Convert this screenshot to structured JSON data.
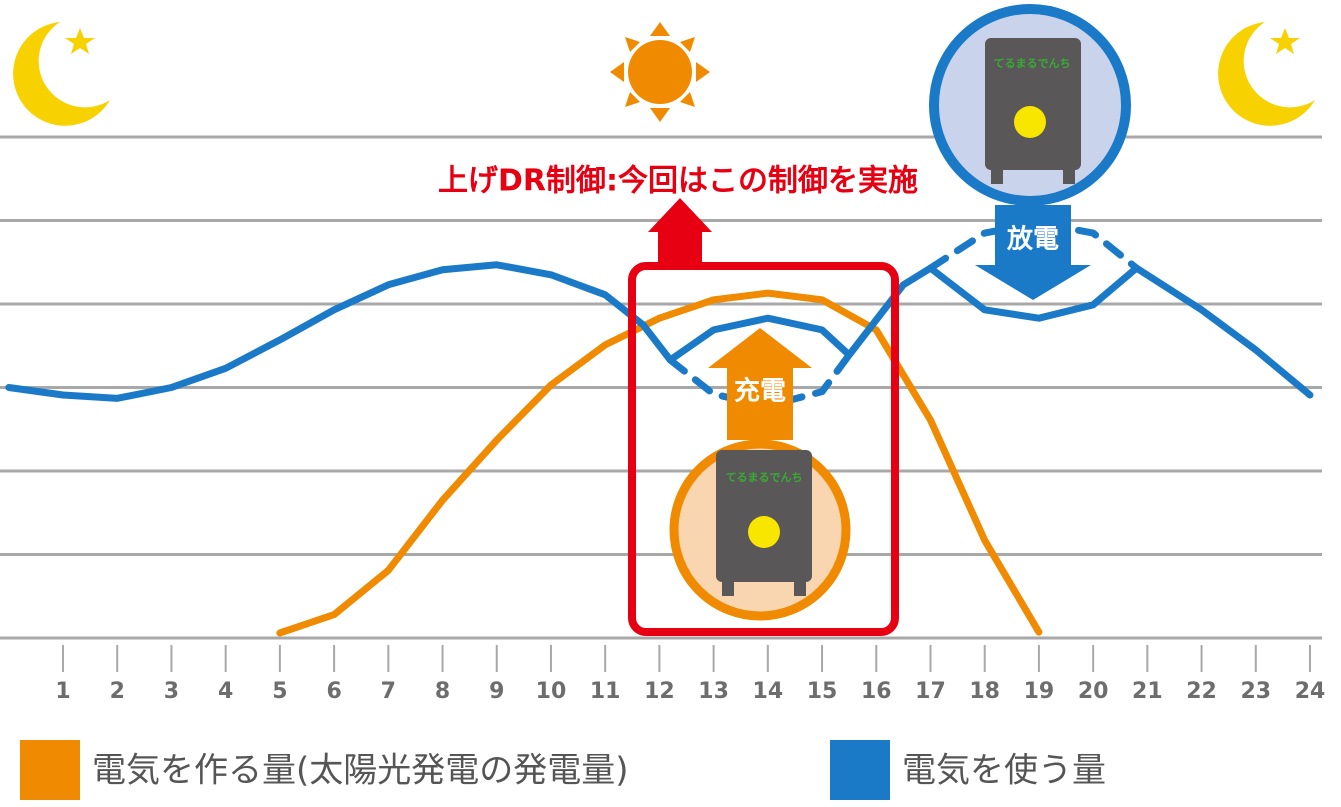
{
  "chart_data": {
    "type": "line",
    "xlim": [
      0,
      24
    ],
    "xticks": [
      1,
      2,
      3,
      4,
      5,
      6,
      7,
      8,
      9,
      10,
      11,
      12,
      13,
      14,
      15,
      16,
      17,
      18,
      19,
      20,
      21,
      22,
      23,
      24
    ],
    "ylim": [
      0,
      6
    ],
    "yticks": [
      0,
      1,
      2,
      3,
      4,
      5,
      6
    ],
    "grid": true,
    "series": [
      {
        "name": "電気を作る量(太陽光発電の発電量)",
        "color": "#f08a00",
        "x": [
          5,
          6,
          7,
          8,
          9,
          10,
          11,
          12,
          13,
          14,
          15,
          16,
          17,
          18,
          19
        ],
        "values": [
          0.06,
          0.28,
          0.81,
          1.65,
          2.37,
          3.03,
          3.51,
          3.83,
          4.05,
          4.13,
          4.05,
          3.69,
          2.61,
          1.17,
          0.07
        ]
      },
      {
        "name": "電気を使う量",
        "color": "#1a7ac8",
        "x": [
          0,
          1,
          2,
          3,
          4,
          5,
          6,
          7,
          8,
          9,
          10,
          11,
          11.7,
          12.2,
          13,
          14,
          15,
          15.5,
          16,
          16.5,
          17,
          18,
          19,
          20,
          20.8,
          22,
          23,
          24
        ],
        "values": [
          3.0,
          2.91,
          2.87,
          3.0,
          3.23,
          3.57,
          3.93,
          4.23,
          4.41,
          4.47,
          4.35,
          4.11,
          3.75,
          3.33,
          3.69,
          3.83,
          3.69,
          3.39,
          3.81,
          4.23,
          4.43,
          3.93,
          3.83,
          3.99,
          4.43,
          3.93,
          3.45,
          2.91
        ]
      },
      {
        "color": "#1a7ac8",
        "dashed": true,
        "x": [
          12.2,
          13,
          14,
          15,
          15.5
        ],
        "values": [
          3.33,
          2.92,
          2.78,
          2.95,
          3.39
        ]
      },
      {
        "color": "#1a7ac8",
        "dashed": true,
        "x": [
          17,
          18,
          19,
          20,
          20.8
        ],
        "values": [
          4.43,
          4.85,
          4.97,
          4.85,
          4.43
        ]
      }
    ],
    "annotations": {
      "control": "上げDR制御:今回はこの制御を実施",
      "charge": "充電",
      "discharge": "放電",
      "battery_1": "てるまるでんち",
      "battery_2": "てるまるでんち"
    }
  }
}
